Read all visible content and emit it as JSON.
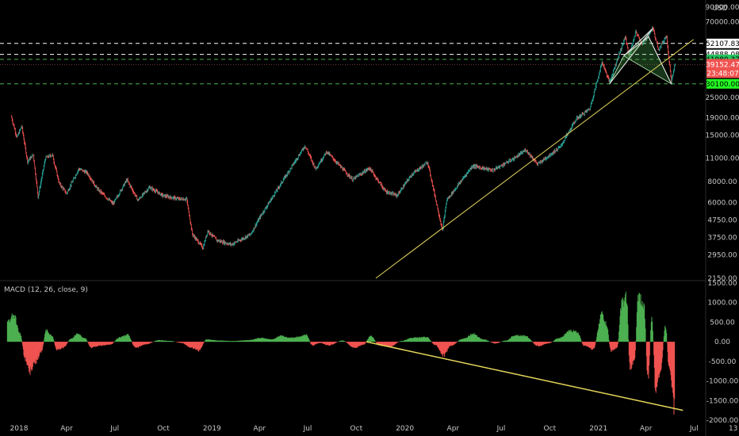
{
  "chart_data": [
    {
      "type": "candlestick",
      "title": "",
      "scale": "log",
      "currency": "USD",
      "ylim": [
        2150,
        90000
      ],
      "y_ticks": [
        "90000.00",
        "70000.00",
        "25000.00",
        "19000.00",
        "15000.00",
        "11000.00",
        "8000.00",
        "6000.00",
        "4750.00",
        "3750.00",
        "2950.00",
        "2150.00"
      ],
      "y_tick_values": [
        90000,
        70000,
        25000,
        19000,
        15000,
        11000,
        8000,
        6000,
        4750,
        3750,
        2950,
        2150
      ],
      "horizontal_levels": [
        {
          "value": 52107.83,
          "label": "52107.83",
          "style": "dashed",
          "color": "#ffffff",
          "tag_bg": "#ffffff",
          "tag_fg": "#000000"
        },
        {
          "value": 44888.08,
          "label": "44888.08",
          "style": "dashed",
          "color": "#ffffff",
          "tag_bg": "#ffffff",
          "tag_fg": "#000000"
        },
        {
          "value": 41980.37,
          "label": "41980.37",
          "style": "dashed",
          "color": "#4caf50",
          "tag_bg": "#22c55e",
          "tag_fg": "#000000"
        },
        {
          "value": 30100.0,
          "label": "30100.00",
          "style": "dashed",
          "color": "#4caf50",
          "tag_bg": "#22ff22",
          "tag_fg": "#000000"
        }
      ],
      "last_price": {
        "value": 39152.47,
        "label": "39152.47",
        "countdown": "23:48:07",
        "color": "#ef5350"
      },
      "price_path": [
        [
          "2017-12-17",
          19500
        ],
        [
          "2017-12-28",
          14500
        ],
        [
          "2018-01-06",
          17000
        ],
        [
          "2018-01-17",
          10500
        ],
        [
          "2018-01-28",
          11500
        ],
        [
          "2018-02-06",
          6500
        ],
        [
          "2018-02-20",
          11000
        ],
        [
          "2018-03-05",
          11500
        ],
        [
          "2018-03-18",
          7800
        ],
        [
          "2018-04-01",
          6800
        ],
        [
          "2018-04-24",
          9500
        ],
        [
          "2018-05-10",
          9000
        ],
        [
          "2018-05-28",
          7300
        ],
        [
          "2018-06-28",
          5900
        ],
        [
          "2018-07-24",
          8200
        ],
        [
          "2018-08-14",
          6200
        ],
        [
          "2018-09-05",
          7400
        ],
        [
          "2018-09-30",
          6600
        ],
        [
          "2018-10-31",
          6300
        ],
        [
          "2018-11-14",
          6300
        ],
        [
          "2018-11-25",
          3900
        ],
        [
          "2018-12-15",
          3250
        ],
        [
          "2018-12-24",
          4100
        ],
        [
          "2019-01-10",
          3600
        ],
        [
          "2019-02-07",
          3400
        ],
        [
          "2019-03-15",
          3900
        ],
        [
          "2019-04-03",
          5000
        ],
        [
          "2019-05-14",
          8000
        ],
        [
          "2019-06-26",
          13000
        ],
        [
          "2019-07-16",
          9500
        ],
        [
          "2019-08-06",
          12000
        ],
        [
          "2019-09-24",
          8200
        ],
        [
          "2019-10-26",
          9600
        ],
        [
          "2019-11-25",
          7000
        ],
        [
          "2019-12-17",
          6600
        ],
        [
          "2020-01-14",
          8800
        ],
        [
          "2020-02-13",
          10400
        ],
        [
          "2020-03-12",
          4100
        ],
        [
          "2020-03-20",
          6200
        ],
        [
          "2020-05-08",
          9900
        ],
        [
          "2020-06-15",
          9300
        ],
        [
          "2020-07-27",
          11000
        ],
        [
          "2020-08-17",
          12300
        ],
        [
          "2020-09-08",
          10100
        ],
        [
          "2020-10-21",
          12800
        ],
        [
          "2020-11-20",
          18700
        ],
        [
          "2020-12-16",
          21500
        ],
        [
          "2021-01-08",
          40500
        ],
        [
          "2021-01-22",
          31000
        ],
        [
          "2021-02-21",
          57000
        ],
        [
          "2021-02-28",
          44000
        ],
        [
          "2021-03-13",
          61000
        ],
        [
          "2021-03-25",
          51500
        ],
        [
          "2021-04-14",
          64000
        ],
        [
          "2021-04-25",
          48000
        ],
        [
          "2021-05-10",
          58000
        ],
        [
          "2021-05-19",
          31000
        ],
        [
          "2021-05-26",
          39152
        ]
      ],
      "trendline": {
        "from": [
          "2019-11-07",
          2150
        ],
        "to": [
          "2021-06-30",
          55000
        ],
        "color": "#e6d75a"
      },
      "pattern": {
        "points": [
          [
            "2021-01-22",
            30100
          ],
          [
            "2021-04-14",
            64000
          ],
          [
            "2021-02-18",
            44000
          ],
          [
            "2021-04-06",
            57000
          ],
          [
            "2021-05-19",
            30100
          ]
        ],
        "fill": "#4caf50"
      }
    },
    {
      "type": "bar",
      "title": "MACD (12, 26, close, 9)",
      "ylim": [
        -2000,
        1500
      ],
      "y_ticks": [
        "1500.00",
        "1000.00",
        "500.00",
        "0.00",
        "-500.00",
        "-1000.00",
        "-1500.00",
        "-2000.00"
      ],
      "y_tick_values": [
        1500,
        1000,
        500,
        0,
        -500,
        -1000,
        -1500,
        -2000
      ],
      "positive_color": "#4caf50",
      "negative_color": "#ef5350",
      "histogram": [
        [
          "2017-12-10",
          500
        ],
        [
          "2017-12-22",
          700
        ],
        [
          "2018-01-03",
          200
        ],
        [
          "2018-01-13",
          -450
        ],
        [
          "2018-01-22",
          -750
        ],
        [
          "2018-02-02",
          -500
        ],
        [
          "2018-02-12",
          -250
        ],
        [
          "2018-02-22",
          300
        ],
        [
          "2018-03-04",
          150
        ],
        [
          "2018-03-14",
          -200
        ],
        [
          "2018-03-26",
          -150
        ],
        [
          "2018-04-10",
          80
        ],
        [
          "2018-04-22",
          200
        ],
        [
          "2018-05-05",
          100
        ],
        [
          "2018-05-18",
          -150
        ],
        [
          "2018-06-02",
          -100
        ],
        [
          "2018-06-22",
          -70
        ],
        [
          "2018-07-12",
          120
        ],
        [
          "2018-07-25",
          180
        ],
        [
          "2018-08-10",
          -150
        ],
        [
          "2018-08-30",
          -60
        ],
        [
          "2018-09-22",
          40
        ],
        [
          "2018-10-15",
          20
        ],
        [
          "2018-11-05",
          -30
        ],
        [
          "2018-11-22",
          -150
        ],
        [
          "2018-12-07",
          -220
        ],
        [
          "2018-12-22",
          60
        ],
        [
          "2019-01-15",
          30
        ],
        [
          "2019-02-10",
          20
        ],
        [
          "2019-03-10",
          40
        ],
        [
          "2019-04-05",
          100
        ],
        [
          "2019-04-25",
          60
        ],
        [
          "2019-05-12",
          150
        ],
        [
          "2019-05-28",
          100
        ],
        [
          "2019-06-15",
          120
        ],
        [
          "2019-06-28",
          190
        ],
        [
          "2019-07-10",
          -90
        ],
        [
          "2019-07-25",
          -30
        ],
        [
          "2019-08-10",
          -90
        ],
        [
          "2019-09-05",
          30
        ],
        [
          "2019-09-28",
          -160
        ],
        [
          "2019-10-15",
          -70
        ],
        [
          "2019-10-28",
          140
        ],
        [
          "2019-11-15",
          -100
        ],
        [
          "2019-12-05",
          -120
        ],
        [
          "2019-12-25",
          20
        ],
        [
          "2020-01-15",
          100
        ],
        [
          "2020-02-10",
          120
        ],
        [
          "2020-02-28",
          -80
        ],
        [
          "2020-03-14",
          -350
        ],
        [
          "2020-03-28",
          -100
        ],
        [
          "2020-04-20",
          80
        ],
        [
          "2020-05-10",
          200
        ],
        [
          "2020-05-28",
          60
        ],
        [
          "2020-06-20",
          -40
        ],
        [
          "2020-07-10",
          30
        ],
        [
          "2020-07-28",
          170
        ],
        [
          "2020-08-15",
          150
        ],
        [
          "2020-09-10",
          -110
        ],
        [
          "2020-09-28",
          -40
        ],
        [
          "2020-10-20",
          100
        ],
        [
          "2020-11-10",
          280
        ],
        [
          "2020-11-22",
          250
        ],
        [
          "2020-12-05",
          -100
        ],
        [
          "2020-12-22",
          -190
        ],
        [
          "2021-01-08",
          700
        ],
        [
          "2021-01-16",
          450
        ],
        [
          "2021-01-25",
          -230
        ],
        [
          "2021-02-05",
          -160
        ],
        [
          "2021-02-15",
          1000
        ],
        [
          "2021-02-23",
          1150
        ],
        [
          "2021-03-02",
          -650
        ],
        [
          "2021-03-10",
          -500
        ],
        [
          "2021-03-18",
          1200
        ],
        [
          "2021-03-28",
          900
        ],
        [
          "2021-04-05",
          -900
        ],
        [
          "2021-04-12",
          600
        ],
        [
          "2021-04-20",
          -1300
        ],
        [
          "2021-04-28",
          -800
        ],
        [
          "2021-05-08",
          400
        ],
        [
          "2021-05-15",
          -700
        ],
        [
          "2021-05-25",
          -1700
        ]
      ],
      "trendline": {
        "from": [
          "2019-10-20",
          0
        ],
        "to": [
          "2021-06-10",
          -1750
        ],
        "color": "#e6d75a"
      }
    }
  ],
  "x_axis": {
    "labels": [
      {
        "text": "2018",
        "date": "2018-01-01"
      },
      {
        "text": "Apr",
        "date": "2018-04-01"
      },
      {
        "text": "Jul",
        "date": "2018-07-01"
      },
      {
        "text": "Oct",
        "date": "2018-10-01"
      },
      {
        "text": "2019",
        "date": "2019-01-01"
      },
      {
        "text": "Apr",
        "date": "2019-04-01"
      },
      {
        "text": "Jul",
        "date": "2019-07-01"
      },
      {
        "text": "Oct",
        "date": "2019-10-01"
      },
      {
        "text": "2020",
        "date": "2020-01-01"
      },
      {
        "text": "Apr",
        "date": "2020-04-01"
      },
      {
        "text": "Jul",
        "date": "2020-07-01"
      },
      {
        "text": "Oct",
        "date": "2020-10-01"
      },
      {
        "text": "2021",
        "date": "2021-01-01"
      },
      {
        "text": "Apr",
        "date": "2021-04-01"
      },
      {
        "text": "Jul",
        "date": "2021-07-01"
      },
      {
        "text": "13",
        "date": "2021-09-13"
      }
    ]
  }
}
